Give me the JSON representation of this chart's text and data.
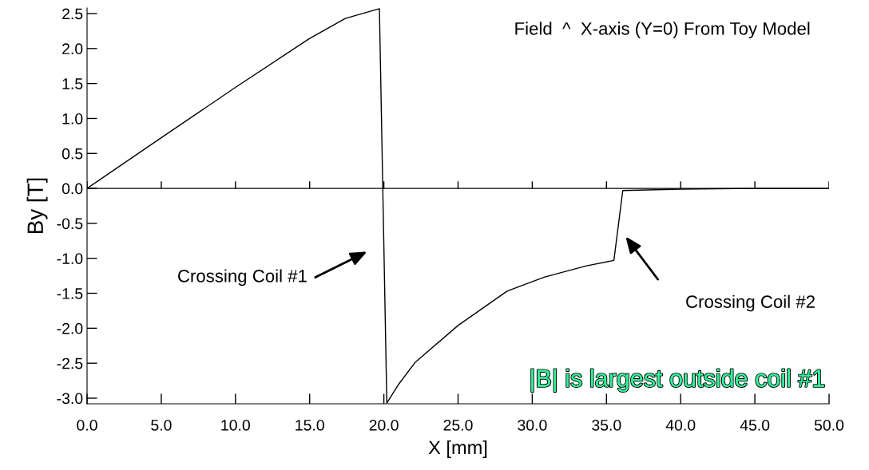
{
  "chart_data": {
    "type": "line",
    "xlabel": "X [mm]",
    "ylabel": "By [T]",
    "x": [
      0,
      4.9,
      9.9,
      14.96,
      17.4,
      19.7,
      20.2,
      21.0,
      22.1,
      25.0,
      28.3,
      30.8,
      33.6,
      35.5,
      36.1,
      40,
      45,
      50
    ],
    "series": [
      {
        "color": "#000000",
        "values": [
          0,
          0.71,
          1.43,
          2.14,
          2.43,
          2.57,
          -3.07,
          -2.8,
          -2.49,
          -1.96,
          -1.47,
          -1.27,
          -1.11,
          -1.03,
          -0.03,
          -0.01,
          0,
          0
        ]
      }
    ],
    "xlim": [
      0,
      50
    ],
    "ylim": [
      -3.08,
      2.58
    ],
    "xticks": [
      {
        "value": 0,
        "label": "0.0"
      },
      {
        "value": 5,
        "label": "5.0"
      },
      {
        "value": 10,
        "label": "10.0"
      },
      {
        "value": 15,
        "label": "15.0"
      },
      {
        "value": 20,
        "label": "20.0"
      },
      {
        "value": 25,
        "label": "25.0"
      },
      {
        "value": 30,
        "label": "30.0"
      },
      {
        "value": 35,
        "label": "35.0"
      },
      {
        "value": 40,
        "label": "40.0"
      },
      {
        "value": 45,
        "label": "45.0"
      },
      {
        "value": 50,
        "label": "50.0"
      }
    ],
    "yticks": [
      {
        "value": -3,
        "label": "-3.0"
      },
      {
        "value": -2.5,
        "label": "-2.5"
      },
      {
        "value": -2,
        "label": "-2.0"
      },
      {
        "value": -1.5,
        "label": "-1.5"
      },
      {
        "value": -1,
        "label": "-1.0"
      },
      {
        "value": -0.5,
        "label": "-0.5"
      },
      {
        "value": 0,
        "label": "0.0"
      },
      {
        "value": 0.5,
        "label": "0.5"
      },
      {
        "value": 1,
        "label": "1.0"
      },
      {
        "value": 1.5,
        "label": "1.5"
      },
      {
        "value": 2,
        "label": "2.0"
      },
      {
        "value": 2.5,
        "label": "2.5"
      }
    ],
    "ref_lines": [
      {
        "axis": "y",
        "value": 0,
        "color": "#000000"
      }
    ],
    "annotations": [
      "Field  ^  X-axis (Y=0) From Toy Model",
      "|B| is largest outside coil #1",
      "Crossing Coil #1",
      "Crossing Coil #2"
    ],
    "grid": false,
    "legend": false,
    "marker": "none",
    "line_style": "solid"
  }
}
